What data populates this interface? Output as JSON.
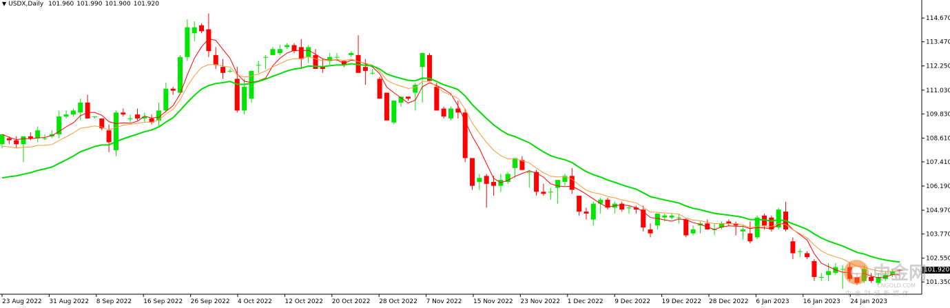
{
  "header": {
    "symbol": "USDX,Daily",
    "open": "101.960",
    "high": "101.990",
    "low": "101.900",
    "close": "101.920"
  },
  "colors": {
    "bull": "#00e600",
    "bear": "#ff0000",
    "ma_fast": "#ff0000",
    "ma_mid": "#ff9933",
    "ma_slow": "#00dd00",
    "axis": "#000000"
  },
  "watermark": {
    "brand": "中金网",
    "site": "CNGOLD.COM",
    "slogan": "中 金 财 经 新 媒 体"
  },
  "current_price_label": "101.920",
  "chart_data": {
    "type": "candlestick",
    "title": "USDX,Daily",
    "y_ticks": [
      "114.670",
      "113.470",
      "112.250",
      "111.030",
      "109.830",
      "108.610",
      "107.410",
      "106.190",
      "104.970",
      "103.770",
      "102.550",
      "101.350"
    ],
    "x_ticks": [
      "23 Aug 2022",
      "31 Aug 2022",
      "8 Sep 2022",
      "16 Sep 2022",
      "26 Sep 2022",
      "4 Oct 2022",
      "12 Oct 2022",
      "20 Oct 2022",
      "28 Oct 2022",
      "7 Nov 2022",
      "15 Nov 2022",
      "23 Nov 2022",
      "1 Dec 2022",
      "9 Dec 2022",
      "19 Dec 2022",
      "28 Dec 2022",
      "6 Jan 2023",
      "16 Jan 2023",
      "24 Jan 2023"
    ],
    "ylim": [
      100.8,
      115.3
    ],
    "grid": false,
    "candles": [
      {
        "o": 108.3,
        "h": 108.8,
        "l": 108.1,
        "c": 108.8
      },
      {
        "o": 108.6,
        "h": 108.7,
        "l": 108.3,
        "c": 108.5
      },
      {
        "o": 108.5,
        "h": 108.7,
        "l": 108.1,
        "c": 108.3
      },
      {
        "o": 108.3,
        "h": 108.7,
        "l": 107.4,
        "c": 108.7
      },
      {
        "o": 108.7,
        "h": 108.9,
        "l": 108.5,
        "c": 108.6
      },
      {
        "o": 108.6,
        "h": 109.2,
        "l": 108.4,
        "c": 109.0
      },
      {
        "o": 108.6,
        "h": 108.8,
        "l": 108.5,
        "c": 108.6
      },
      {
        "o": 108.7,
        "h": 109.0,
        "l": 108.6,
        "c": 108.8
      },
      {
        "o": 108.8,
        "h": 110.0,
        "l": 108.6,
        "c": 109.7
      },
      {
        "o": 109.7,
        "h": 110.0,
        "l": 109.6,
        "c": 109.8
      },
      {
        "o": 109.8,
        "h": 110.1,
        "l": 109.7,
        "c": 110.0
      },
      {
        "o": 109.9,
        "h": 110.6,
        "l": 109.5,
        "c": 110.4
      },
      {
        "o": 110.4,
        "h": 110.8,
        "l": 109.6,
        "c": 109.6
      },
      {
        "o": 109.7,
        "h": 109.7,
        "l": 109.6,
        "c": 109.7
      },
      {
        "o": 109.6,
        "h": 109.6,
        "l": 109.0,
        "c": 109.1
      },
      {
        "o": 109.0,
        "h": 109.3,
        "l": 107.9,
        "c": 108.4
      },
      {
        "o": 108.0,
        "h": 110.0,
        "l": 107.7,
        "c": 109.9
      },
      {
        "o": 109.9,
        "h": 110.1,
        "l": 109.7,
        "c": 109.8
      },
      {
        "o": 109.6,
        "h": 109.8,
        "l": 109.4,
        "c": 109.6
      },
      {
        "o": 109.8,
        "h": 110.1,
        "l": 109.5,
        "c": 109.6
      },
      {
        "o": 109.6,
        "h": 109.9,
        "l": 109.4,
        "c": 109.7
      },
      {
        "o": 109.6,
        "h": 109.8,
        "l": 109.3,
        "c": 109.4
      },
      {
        "o": 109.5,
        "h": 110.4,
        "l": 109.2,
        "c": 110.0
      },
      {
        "o": 110.0,
        "h": 111.4,
        "l": 109.9,
        "c": 111.1
      },
      {
        "o": 111.1,
        "h": 111.2,
        "l": 110.8,
        "c": 111.0
      },
      {
        "o": 110.9,
        "h": 112.8,
        "l": 110.9,
        "c": 112.7
      },
      {
        "o": 112.7,
        "h": 114.6,
        "l": 112.5,
        "c": 114.2
      },
      {
        "o": 113.9,
        "h": 114.5,
        "l": 113.5,
        "c": 114.2
      },
      {
        "o": 114.3,
        "h": 114.4,
        "l": 113.9,
        "c": 114.0
      },
      {
        "o": 114.1,
        "h": 114.9,
        "l": 112.7,
        "c": 113.0
      },
      {
        "o": 112.8,
        "h": 113.2,
        "l": 112.1,
        "c": 112.3
      },
      {
        "o": 112.2,
        "h": 112.6,
        "l": 111.6,
        "c": 111.9
      },
      {
        "o": 112.0,
        "h": 112.1,
        "l": 111.9,
        "c": 112.0
      },
      {
        "o": 111.6,
        "h": 112.2,
        "l": 109.9,
        "c": 110.0
      },
      {
        "o": 110.0,
        "h": 111.6,
        "l": 109.8,
        "c": 111.2
      },
      {
        "o": 110.6,
        "h": 112.0,
        "l": 110.4,
        "c": 112.0
      },
      {
        "o": 112.3,
        "h": 112.5,
        "l": 111.9,
        "c": 112.3
      },
      {
        "o": 112.7,
        "h": 112.8,
        "l": 112.1,
        "c": 112.7
      },
      {
        "o": 112.8,
        "h": 113.2,
        "l": 112.8,
        "c": 113.1
      },
      {
        "o": 112.9,
        "h": 113.3,
        "l": 112.8,
        "c": 113.1
      },
      {
        "o": 113.2,
        "h": 113.4,
        "l": 113.1,
        "c": 113.3
      },
      {
        "o": 113.3,
        "h": 113.4,
        "l": 112.9,
        "c": 113.0
      },
      {
        "o": 113.2,
        "h": 113.6,
        "l": 112.1,
        "c": 112.6
      },
      {
        "o": 112.7,
        "h": 113.3,
        "l": 112.4,
        "c": 113.2
      },
      {
        "o": 112.8,
        "h": 113.1,
        "l": 112.2,
        "c": 112.1
      },
      {
        "o": 112.2,
        "h": 112.6,
        "l": 111.9,
        "c": 112.1
      },
      {
        "o": 112.5,
        "h": 112.9,
        "l": 112.3,
        "c": 112.7
      },
      {
        "o": 112.7,
        "h": 112.9,
        "l": 112.5,
        "c": 112.7
      },
      {
        "o": 112.5,
        "h": 112.5,
        "l": 112.2,
        "c": 112.3
      },
      {
        "o": 112.8,
        "h": 113.0,
        "l": 112.7,
        "c": 112.9
      },
      {
        "o": 112.8,
        "h": 113.8,
        "l": 111.9,
        "c": 111.9
      },
      {
        "o": 112.2,
        "h": 112.6,
        "l": 111.3,
        "c": 112.0
      },
      {
        "o": 111.9,
        "h": 112.1,
        "l": 111.8,
        "c": 111.9
      },
      {
        "o": 111.6,
        "h": 111.7,
        "l": 110.6,
        "c": 110.6
      },
      {
        "o": 110.9,
        "h": 110.9,
        "l": 109.5,
        "c": 109.5
      },
      {
        "o": 109.4,
        "h": 110.5,
        "l": 109.3,
        "c": 110.5
      },
      {
        "o": 110.4,
        "h": 110.7,
        "l": 110.2,
        "c": 110.7
      },
      {
        "o": 110.7,
        "h": 110.7,
        "l": 110.5,
        "c": 110.6
      },
      {
        "o": 110.9,
        "h": 111.4,
        "l": 110.0,
        "c": 111.3
      },
      {
        "o": 112.2,
        "h": 112.9,
        "l": 110.4,
        "c": 112.9
      },
      {
        "o": 112.8,
        "h": 112.9,
        "l": 111.5,
        "c": 111.5
      },
      {
        "o": 111.2,
        "h": 111.4,
        "l": 110.0,
        "c": 110.0
      },
      {
        "o": 110.1,
        "h": 110.2,
        "l": 109.6,
        "c": 109.7
      },
      {
        "o": 109.6,
        "h": 110.2,
        "l": 109.5,
        "c": 110.1
      },
      {
        "o": 110.1,
        "h": 110.5,
        "l": 109.6,
        "c": 109.9
      },
      {
        "o": 109.9,
        "h": 110.1,
        "l": 107.4,
        "c": 107.6
      },
      {
        "o": 107.6,
        "h": 107.6,
        "l": 106.0,
        "c": 106.2
      },
      {
        "o": 106.4,
        "h": 106.8,
        "l": 106.0,
        "c": 106.6
      },
      {
        "o": 106.7,
        "h": 106.8,
        "l": 105.1,
        "c": 106.3
      },
      {
        "o": 106.4,
        "h": 106.7,
        "l": 105.7,
        "c": 106.2
      },
      {
        "o": 106.2,
        "h": 106.8,
        "l": 105.9,
        "c": 106.5
      },
      {
        "o": 106.4,
        "h": 106.9,
        "l": 106.3,
        "c": 106.8
      },
      {
        "o": 107.1,
        "h": 107.6,
        "l": 106.6,
        "c": 107.6
      },
      {
        "o": 107.5,
        "h": 107.7,
        "l": 107.0,
        "c": 107.0
      },
      {
        "o": 106.9,
        "h": 107.0,
        "l": 106.1,
        "c": 106.9
      },
      {
        "o": 106.9,
        "h": 107.0,
        "l": 105.7,
        "c": 105.9
      },
      {
        "o": 105.9,
        "h": 106.3,
        "l": 105.7,
        "c": 105.8
      },
      {
        "o": 105.9,
        "h": 106.1,
        "l": 105.5,
        "c": 105.9
      },
      {
        "o": 106.1,
        "h": 106.4,
        "l": 105.3,
        "c": 106.5
      },
      {
        "o": 106.4,
        "h": 106.8,
        "l": 106.2,
        "c": 106.7
      },
      {
        "o": 106.7,
        "h": 107.1,
        "l": 105.8,
        "c": 106.0
      },
      {
        "o": 105.7,
        "h": 105.7,
        "l": 104.7,
        "c": 104.9
      },
      {
        "o": 104.9,
        "h": 105.1,
        "l": 104.5,
        "c": 104.8
      },
      {
        "o": 104.5,
        "h": 105.4,
        "l": 104.2,
        "c": 105.3
      },
      {
        "o": 105.3,
        "h": 105.6,
        "l": 104.8,
        "c": 105.5
      },
      {
        "o": 105.5,
        "h": 105.6,
        "l": 105.0,
        "c": 105.1
      },
      {
        "o": 105.1,
        "h": 105.4,
        "l": 104.8,
        "c": 105.3
      },
      {
        "o": 105.3,
        "h": 105.4,
        "l": 104.9,
        "c": 105.0
      },
      {
        "o": 105.1,
        "h": 105.2,
        "l": 104.8,
        "c": 105.1
      },
      {
        "o": 105.1,
        "h": 105.2,
        "l": 104.8,
        "c": 105.0
      },
      {
        "o": 105.0,
        "h": 105.2,
        "l": 103.9,
        "c": 104.1
      },
      {
        "o": 104.0,
        "h": 104.3,
        "l": 103.6,
        "c": 103.8
      },
      {
        "o": 104.2,
        "h": 104.8,
        "l": 104.0,
        "c": 104.8
      },
      {
        "o": 104.6,
        "h": 104.8,
        "l": 104.4,
        "c": 104.7
      },
      {
        "o": 104.6,
        "h": 104.8,
        "l": 104.5,
        "c": 104.7
      },
      {
        "o": 104.6,
        "h": 104.8,
        "l": 104.3,
        "c": 104.6
      },
      {
        "o": 104.5,
        "h": 104.6,
        "l": 103.6,
        "c": 103.7
      },
      {
        "o": 103.8,
        "h": 104.2,
        "l": 103.7,
        "c": 104.0
      },
      {
        "o": 104.2,
        "h": 104.4,
        "l": 103.8,
        "c": 104.3
      },
      {
        "o": 104.3,
        "h": 104.5,
        "l": 104.0,
        "c": 104.0
      },
      {
        "o": 104.0,
        "h": 104.3,
        "l": 103.7,
        "c": 104.0
      },
      {
        "o": 104.1,
        "h": 104.4,
        "l": 104.0,
        "c": 104.3
      },
      {
        "o": 104.4,
        "h": 104.5,
        "l": 104.2,
        "c": 104.3
      },
      {
        "o": 104.3,
        "h": 104.4,
        "l": 103.7,
        "c": 104.2
      },
      {
        "o": 103.9,
        "h": 104.2,
        "l": 103.5,
        "c": 104.0
      },
      {
        "o": 103.8,
        "h": 104.4,
        "l": 103.3,
        "c": 103.4
      },
      {
        "o": 103.6,
        "h": 104.7,
        "l": 103.5,
        "c": 104.6
      },
      {
        "o": 104.7,
        "h": 104.8,
        "l": 104.0,
        "c": 104.2
      },
      {
        "o": 104.6,
        "h": 104.7,
        "l": 103.9,
        "c": 104.0
      },
      {
        "o": 104.1,
        "h": 105.1,
        "l": 104.0,
        "c": 105.0
      },
      {
        "o": 104.9,
        "h": 105.4,
        "l": 103.9,
        "c": 104.0
      },
      {
        "o": 103.4,
        "h": 103.6,
        "l": 102.5,
        "c": 102.8
      },
      {
        "o": 102.9,
        "h": 103.0,
        "l": 102.6,
        "c": 102.9
      },
      {
        "o": 102.8,
        "h": 102.9,
        "l": 102.5,
        "c": 102.6
      },
      {
        "o": 102.4,
        "h": 102.5,
        "l": 101.4,
        "c": 101.6
      },
      {
        "o": 101.6,
        "h": 101.8,
        "l": 101.4,
        "c": 101.6
      },
      {
        "o": 101.7,
        "h": 102.3,
        "l": 101.4,
        "c": 101.9
      },
      {
        "o": 101.8,
        "h": 102.3,
        "l": 101.7,
        "c": 102.1
      },
      {
        "o": 102.0,
        "h": 102.2,
        "l": 101.0,
        "c": 102.0
      },
      {
        "o": 102.1,
        "h": 102.3,
        "l": 101.4,
        "c": 101.5
      },
      {
        "o": 101.6,
        "h": 101.8,
        "l": 101.2,
        "c": 101.3
      },
      {
        "o": 101.4,
        "h": 102.2,
        "l": 101.3,
        "c": 102.0
      },
      {
        "o": 101.6,
        "h": 101.8,
        "l": 101.3,
        "c": 101.4
      },
      {
        "o": 101.3,
        "h": 101.8,
        "l": 101.2,
        "c": 101.6
      },
      {
        "o": 101.5,
        "h": 101.9,
        "l": 101.4,
        "c": 101.7
      },
      {
        "o": 101.7,
        "h": 102.0,
        "l": 101.6,
        "c": 101.9
      },
      {
        "o": 101.96,
        "h": 101.99,
        "l": 101.9,
        "c": 101.92
      }
    ],
    "moving_averages": [
      {
        "name": "MA fast",
        "color": "#ff0000"
      },
      {
        "name": "MA mid",
        "color": "#ff9933"
      },
      {
        "name": "MA slow",
        "color": "#00dd00"
      }
    ]
  }
}
